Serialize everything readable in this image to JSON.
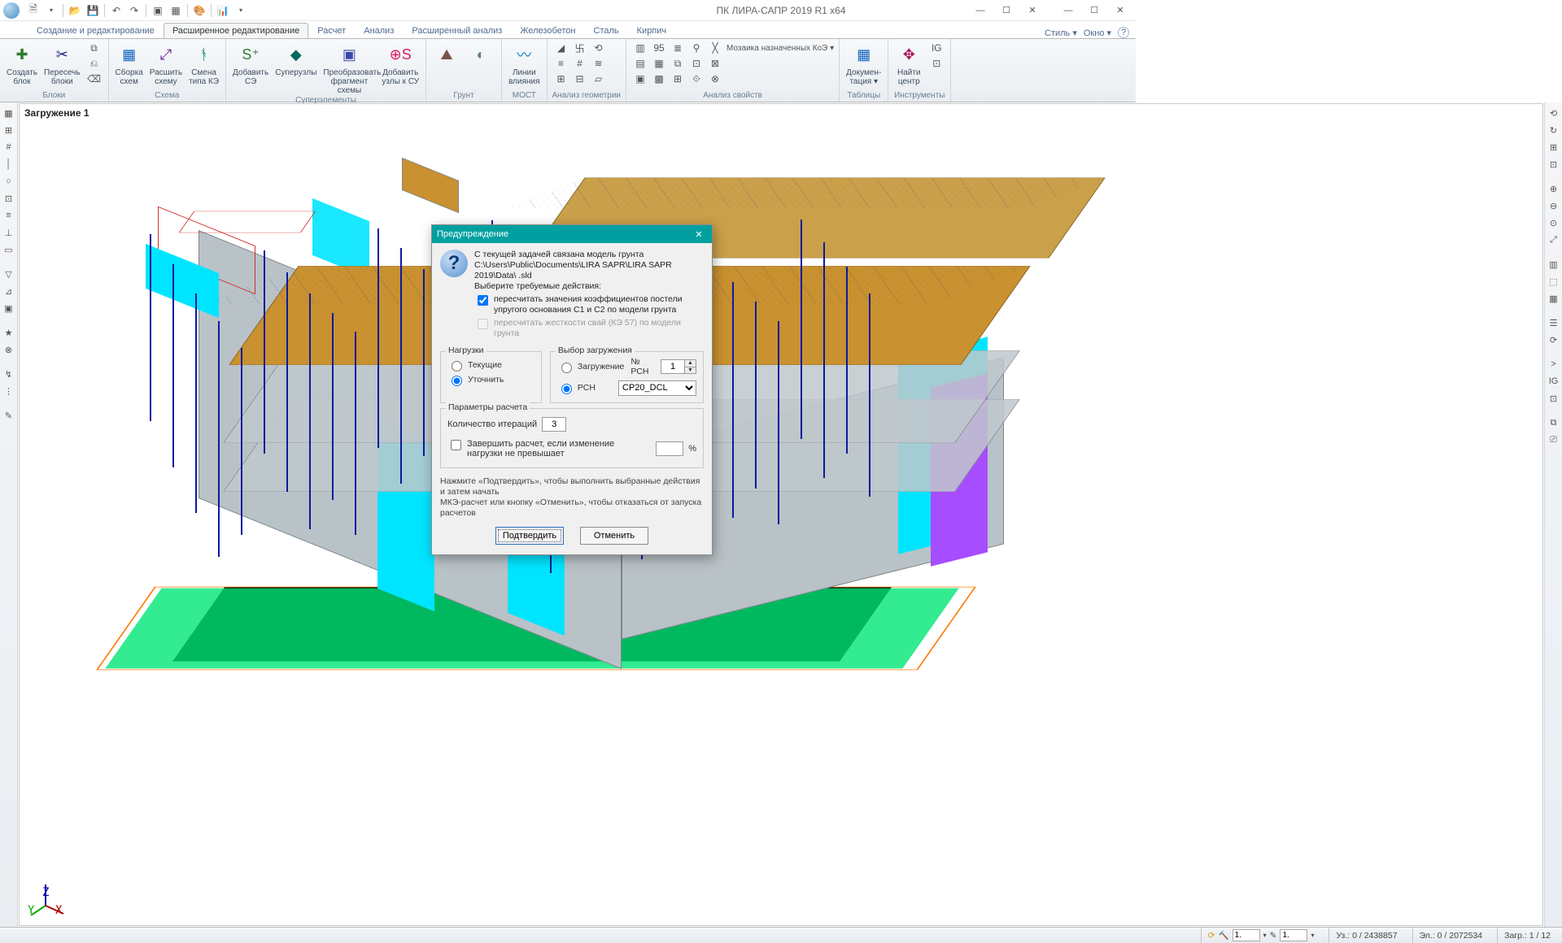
{
  "app": {
    "title": "ПК ЛИРА-САПР  2019 R1 x64"
  },
  "qat_icons": [
    "file-new",
    "",
    "file-open",
    "file-save",
    "",
    "undo",
    "redo",
    "",
    "cascade",
    "tile",
    "",
    "help",
    "",
    "restore",
    "dropdown"
  ],
  "window_controls": {
    "min": "—",
    "max": "☐",
    "close": "✕"
  },
  "window_controls_sub": {
    "min": "—",
    "max": "☐",
    "close": "✕"
  },
  "tabs": {
    "items": [
      "Создание и редактирование",
      "Расширенное редактирование",
      "Расчет",
      "Анализ",
      "Расширенный анализ",
      "Железобетон",
      "Сталь",
      "Кирпич"
    ],
    "active_index": 1,
    "right": {
      "style": "Стиль",
      "window": "Окно",
      "help": "?"
    }
  },
  "ribbon": {
    "groups": [
      {
        "title": "Блоки",
        "buttons": [
          {
            "icon": "✚",
            "label": "Создать\nблок",
            "color": "#2e7d32"
          },
          {
            "icon": "✂",
            "label": "Пересечь\nблоки",
            "color": "#1a237e"
          }
        ],
        "small": [
          "⧉",
          "⎌",
          "⌫"
        ]
      },
      {
        "title": "Схема",
        "buttons": [
          {
            "icon": "▦",
            "label": "Сборка\nсхем",
            "color": "#1565c0"
          },
          {
            "icon": "⤢",
            "label": "Расшить\nсхему",
            "color": "#6a1b9a"
          },
          {
            "icon": "ᚬ",
            "label": "Смена\nтипа КЭ",
            "color": "#00897b"
          }
        ]
      },
      {
        "title": "Суперэлементы",
        "buttons": [
          {
            "icon": "S⁺",
            "label": "Добавить\nСЭ",
            "color": "#2e7d32"
          },
          {
            "icon": "◆",
            "label": "Суперузлы",
            "color": "#00695c"
          },
          {
            "icon": "▣",
            "label": "Преобразовать\nфрагмент схемы",
            "color": "#3949ab"
          },
          {
            "icon": "⊕S",
            "label": "Добавить\nузлы к СУ",
            "color": "#d81b60"
          }
        ]
      },
      {
        "title": "Грунт",
        "buttons": [
          {
            "icon": "⛰",
            "label": "",
            "color": "#795548"
          },
          {
            "icon": "◐",
            "label": "",
            "color": "#607d8b"
          }
        ]
      },
      {
        "title": "МОСТ",
        "buttons": [
          {
            "icon": "〰",
            "label": "Линии\nвлияния",
            "color": "#0277bd"
          }
        ]
      },
      {
        "title": "Анализ геометрии",
        "buttons": [],
        "grid": [
          [
            "◢",
            "卐",
            "⟲"
          ],
          [
            "≡",
            "#",
            "≋"
          ],
          [
            "⊞",
            "⊟",
            "▱"
          ]
        ]
      },
      {
        "title": "Анализ свойств",
        "buttons": [],
        "wide_grid": [
          [
            "▥",
            "95",
            "≣",
            "⚲",
            "╳",
            "Мозаика назначенных КоЭ ▾"
          ],
          [
            "▤",
            "▦",
            "⧉",
            "⊡",
            "⊠",
            ""
          ],
          [
            "▣",
            "▩",
            "⊞",
            "⟐",
            "⊗",
            ""
          ]
        ]
      },
      {
        "title": "Таблицы",
        "buttons": [
          {
            "icon": "▦",
            "label": "Докумен-\nтация ▾",
            "color": "#1565c0"
          }
        ]
      },
      {
        "title": "Инструменты",
        "buttons": [
          {
            "icon": "✥",
            "label": "Найти\nцентр",
            "color": "#ad1457"
          }
        ],
        "small": [
          "IG",
          "⊡"
        ]
      }
    ]
  },
  "left_palette": [
    "▦",
    "⊞",
    "#",
    "│",
    "○",
    "⊡",
    "≡",
    "⊥",
    "▭",
    "",
    "▽",
    "⊿",
    "▣",
    "",
    "★",
    "⊗",
    "",
    "↯",
    "⋮",
    "",
    "✎"
  ],
  "right_palette": [
    "⟲",
    "↻",
    "⊞",
    "⊡",
    "",
    "⊕",
    "⊖",
    "⊙",
    "⤢",
    "",
    "▥",
    "⬚",
    "▦",
    "",
    "☰",
    "⟳",
    "",
    ">",
    "IG",
    "⊡",
    "",
    "⧉",
    "⎚"
  ],
  "canvas": {
    "load_label": "Загружение 1",
    "axes": {
      "z": "Z",
      "y": "Y",
      "x": "X"
    }
  },
  "dialog": {
    "title": "Предупреждение",
    "msg_l1": "С текущей задачей связана модель грунта",
    "msg_l2": "C:\\Users\\Public\\Documents\\LIRA SAPR\\LIRA SAPR 2019\\Data\\ .sld",
    "msg_l3": "Выберите требуемые действия:",
    "chk1": "пересчитать значения коэффициентов постели упругого основания C1 и C2 по модели грунта",
    "chk1_checked": true,
    "chk2": "пересчитать жесткости свай (КЭ 57) по модели грунта",
    "chk2_checked": false,
    "chk2_disabled": true,
    "fs_loads": {
      "legend": "Нагрузки",
      "r1": "Текущие",
      "r2": "Уточнить",
      "selected": "r2"
    },
    "fs_choice": {
      "legend": "Выбор загружения",
      "r1": "Загружение",
      "r2": "РСН",
      "selected": "r2",
      "spin_label": "№ РСН",
      "spin_value": "1",
      "combo_value": "CP20_DCL"
    },
    "fs_params": {
      "legend": "Параметры расчета",
      "iter_label": "Количество итераций",
      "iter_value": "3",
      "lim_label": "Завершить расчет, если изменение нагрузки не превышает",
      "lim_checked": false,
      "lim_value": "",
      "lim_unit": "%"
    },
    "note1": "Нажмите «Подтвердить», чтобы выполнить выбранные действия и затем начать",
    "note2": "МКЭ-расчет или кнопку «Отменить», чтобы отказаться от запуска расчетов",
    "ok": "Подтвердить",
    "cancel": "Отменить"
  },
  "status": {
    "scale1": "1.",
    "scale2": "1.",
    "nodes": "Уз.: 0 / 2438857",
    "elems": "Эл.: 0 / 2072534",
    "load": "Загр.: 1 / 12"
  },
  "model": {
    "colors": {
      "roof": "#c9912f",
      "roof_edge": "#7a5b1d",
      "floor": "#c0c8cc",
      "floor_edge": "#7d868c",
      "column": "#0b1a9e",
      "green": "#00e676",
      "black": "#000000",
      "cyan": "#00e5ff",
      "magenta": "#a64dff",
      "orange": "#ff7b00"
    }
  }
}
